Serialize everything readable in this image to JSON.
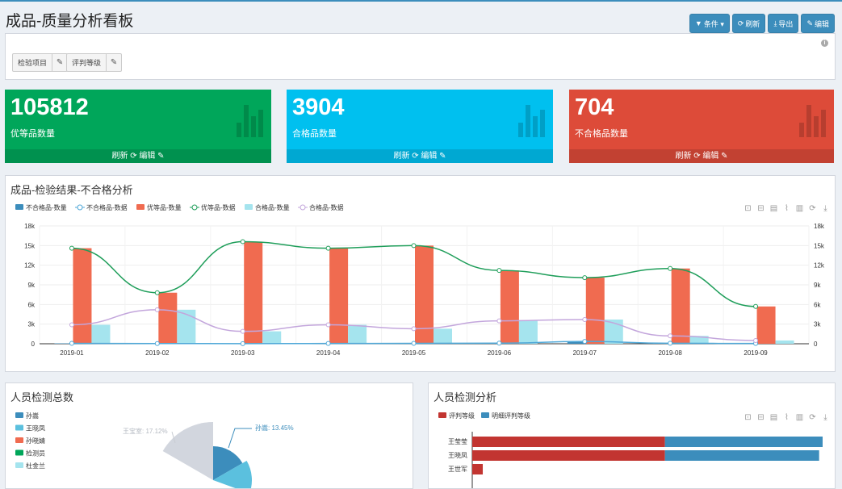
{
  "page": {
    "title": "成品-质量分析看板",
    "toolbar": [
      {
        "name": "condition-button",
        "icon": "filter-icon",
        "glyph": "▼",
        "label": "条件 ▾"
      },
      {
        "name": "refresh-button",
        "icon": "refresh-icon",
        "glyph": "⟳",
        "label": "刷新"
      },
      {
        "name": "export-button",
        "icon": "download-icon",
        "glyph": "⤓",
        "label": "导出"
      },
      {
        "name": "edit-button",
        "icon": "edit-icon",
        "glyph": "✎",
        "label": "编辑"
      }
    ]
  },
  "filters": [
    {
      "label": "检验项目",
      "edit_icon": "✎"
    },
    {
      "label": "评判等级",
      "edit_icon": "✎"
    }
  ],
  "stats": [
    {
      "value": "105812",
      "label": "优等品数量",
      "footer": "刷新 ⟳ 编辑 ✎",
      "color": "#00a65a"
    },
    {
      "value": "3904",
      "label": "合格品数量",
      "footer": "刷新 ⟳ 编辑 ✎",
      "color": "#00c0ef"
    },
    {
      "value": "704",
      "label": "不合格品数量",
      "footer": "刷新 ⟳ 编辑 ✎",
      "color": "#dd4b39"
    }
  ],
  "main_chart": {
    "title": "成品-检验结果-不合格分析",
    "tool_icons": [
      "crop-icon",
      "undo-crop-icon",
      "data-view-icon",
      "line-switch-icon",
      "bar-switch-icon",
      "restore-icon",
      "save-image-icon"
    ],
    "tool_glyphs": [
      "⊡",
      "⊟",
      "▤",
      "⌇",
      "▥",
      "⟳",
      "⤓"
    ],
    "chart_data": {
      "type": "bar",
      "title": "成品-检验结果-不合格分析",
      "categories": [
        "2019-01",
        "2019-02",
        "2019-03",
        "2019-04",
        "2019-05",
        "2019-06",
        "2019-07",
        "2019-08",
        "2019-09"
      ],
      "ylim": [
        0,
        18000
      ],
      "yticks": [
        "0",
        "3k",
        "6k",
        "9k",
        "12k",
        "15k",
        "18k"
      ],
      "ytick_values": [
        0,
        3000,
        6000,
        9000,
        12000,
        15000,
        18000
      ],
      "grid": true,
      "legend_position": "top-left",
      "series": [
        {
          "name": "不合格品-数量",
          "kind": "bar",
          "color": "#3c8dbc",
          "values": [
            60,
            30,
            20,
            40,
            60,
            90,
            350,
            70,
            40
          ]
        },
        {
          "name": "不合格品-数据",
          "kind": "line",
          "color": "#4fa8d8",
          "values": [
            60,
            30,
            20,
            40,
            60,
            90,
            350,
            70,
            40
          ]
        },
        {
          "name": "优等品-数量",
          "kind": "bar",
          "color": "#f06b50",
          "values": [
            14600,
            7800,
            15600,
            14600,
            15000,
            11200,
            10100,
            11500,
            5700
          ]
        },
        {
          "name": "优等品-数据",
          "kind": "line",
          "color": "#1f9e5a",
          "values": [
            14600,
            7800,
            15600,
            14600,
            15000,
            11200,
            10100,
            11500,
            5700
          ]
        },
        {
          "name": "合格品-数量",
          "kind": "bar",
          "color": "#a5e4ee",
          "values": [
            2900,
            5200,
            1900,
            2900,
            2300,
            3500,
            3700,
            1200,
            500
          ]
        },
        {
          "name": "合格品-数据",
          "kind": "line",
          "color": "#c3a6dc",
          "values": [
            2900,
            5200,
            1900,
            2900,
            2300,
            3500,
            3700,
            1200,
            500
          ]
        }
      ]
    }
  },
  "people_total": {
    "title": "人员检测总数",
    "legend": [
      {
        "name": "孙嵩",
        "color": "#3c8dbc"
      },
      {
        "name": "王晓凤",
        "color": "#5bc0de"
      },
      {
        "name": "孙晓婧",
        "color": "#f06b50"
      },
      {
        "name": "检测员",
        "color": "#00a65a"
      },
      {
        "name": "杜金兰",
        "color": "#a5e4ee"
      }
    ],
    "labels": [
      {
        "text": "王宝室: 17.12%",
        "color": "#c8ccd2"
      },
      {
        "text": "孙嵩: 13.45%",
        "color": "#3c8dbc"
      }
    ],
    "chart_data": {
      "type": "pie",
      "slices": [
        {
          "name": "孙嵩",
          "value": 13.45,
          "color": "#3c8dbc"
        },
        {
          "name": "王宝室",
          "value": 17.12,
          "color": "#d2d6de"
        }
      ]
    }
  },
  "people_analysis": {
    "title": "人员检测分析",
    "legend": [
      {
        "name": "评判等级",
        "color": "#c23531"
      },
      {
        "name": "明细评判等级",
        "color": "#3c8dbc"
      }
    ],
    "tool_glyphs": [
      "⊡",
      "⊟",
      "▤",
      "⌇",
      "▥",
      "⟳",
      "⤓"
    ],
    "rows": [
      "王莹莹",
      "王晓凤",
      "王世军"
    ],
    "chart_data": {
      "type": "bar",
      "orientation": "horizontal",
      "categories": [
        "王莹莹",
        "王晓凤",
        "王世军"
      ],
      "series": [
        {
          "name": "评判等级",
          "values": [
            0.55,
            0.55,
            0.03
          ]
        },
        {
          "name": "明细评判等级",
          "values": [
            0.45,
            0.44,
            0
          ]
        }
      ]
    }
  }
}
